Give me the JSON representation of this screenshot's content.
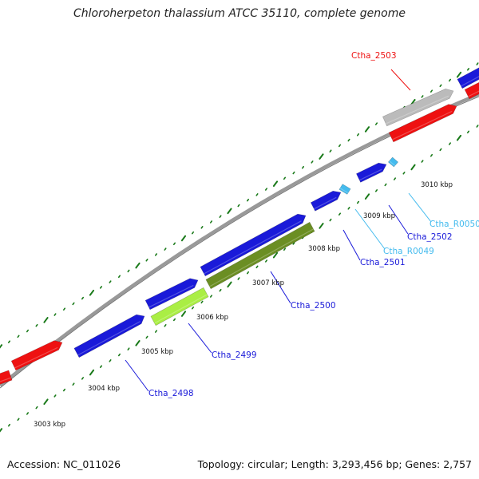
{
  "title": "Chloroherpeton thalassium ATCC 35110, complete genome",
  "footer": {
    "accession": "Accession: NC_011026",
    "summary": "Topology: circular; Length: 3,293,456 bp; Genes: 2,757"
  },
  "colors": {
    "forward_cds": "#1a1ad9",
    "reverse_cds": "#ee1111",
    "pseudogene": "#bbbbbb",
    "rna": "#44bbee",
    "gene_2499": "#aaee44",
    "gene_2500": "#6b8e23",
    "backbone": "#999999",
    "tick": "#1a7a1a"
  },
  "scale_labels": [
    "3003 kbp",
    "3004 kbp",
    "3005 kbp",
    "3006 kbp",
    "3007 kbp",
    "3008 kbp",
    "3009 kbp",
    "3010 kbp"
  ],
  "genes": [
    {
      "label": "Ctha_2498",
      "color": "#1a1ad9"
    },
    {
      "label": "Ctha_2499",
      "color": "#1a1ad9"
    },
    {
      "label": "Ctha_2500",
      "color": "#1a1ad9"
    },
    {
      "label": "Ctha_2501",
      "color": "#1a1ad9"
    },
    {
      "label": "Ctha_R0049",
      "color": "#44bbee"
    },
    {
      "label": "Ctha_2502",
      "color": "#1a1ad9"
    },
    {
      "label": "Ctha_R0050",
      "color": "#44bbee"
    },
    {
      "label": "Ctha_2503",
      "color": "#ee1111"
    }
  ]
}
